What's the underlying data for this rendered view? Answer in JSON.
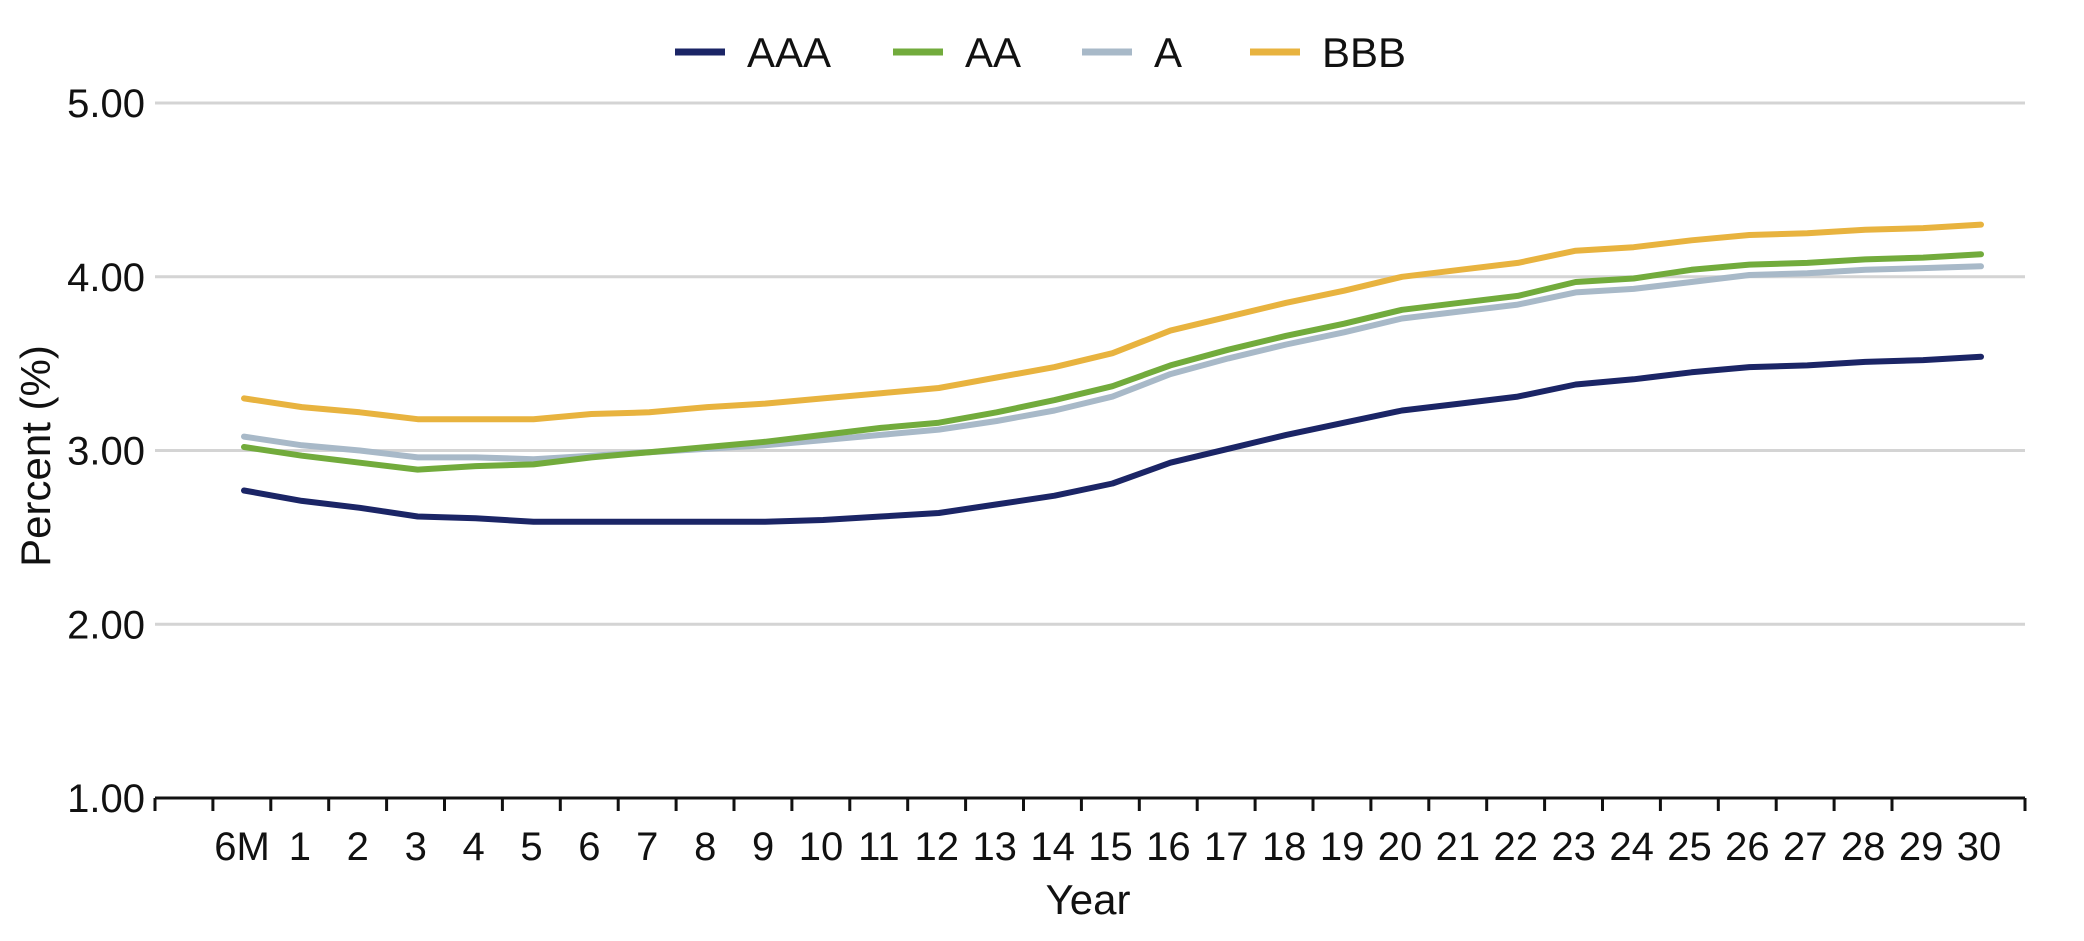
{
  "chart_data": {
    "type": "line",
    "title": "",
    "xlabel": "Year",
    "ylabel": "Percent (%)",
    "ylim": [
      1.0,
      5.0
    ],
    "yticks": [
      "1.00",
      "2.00",
      "3.00",
      "4.00",
      "5.00"
    ],
    "grid": true,
    "legend_position": "top-center",
    "categories": [
      "6M",
      "1",
      "2",
      "3",
      "4",
      "5",
      "6",
      "7",
      "8",
      "9",
      "10",
      "11",
      "12",
      "13",
      "14",
      "15",
      "16",
      "17",
      "18",
      "19",
      "20",
      "21",
      "22",
      "23",
      "24",
      "25",
      "26",
      "27",
      "28",
      "29",
      "30"
    ],
    "series": [
      {
        "name": "AAA",
        "color": "#1b2566",
        "values": [
          2.77,
          2.71,
          2.67,
          2.62,
          2.61,
          2.59,
          2.59,
          2.59,
          2.59,
          2.59,
          2.6,
          2.62,
          2.64,
          2.69,
          2.74,
          2.81,
          2.93,
          3.01,
          3.09,
          3.16,
          3.23,
          3.27,
          3.31,
          3.38,
          3.41,
          3.45,
          3.48,
          3.49,
          3.51,
          3.52,
          3.54
        ]
      },
      {
        "name": "AA",
        "color": "#72ab3c",
        "values": [
          3.02,
          2.97,
          2.93,
          2.89,
          2.91,
          2.92,
          2.96,
          2.99,
          3.02,
          3.05,
          3.09,
          3.13,
          3.16,
          3.22,
          3.29,
          3.37,
          3.49,
          3.58,
          3.66,
          3.73,
          3.81,
          3.85,
          3.89,
          3.97,
          3.99,
          4.04,
          4.07,
          4.08,
          4.1,
          4.11,
          4.13
        ]
      },
      {
        "name": "A",
        "color": "#a8b9c8",
        "values": [
          3.08,
          3.03,
          3.0,
          2.96,
          2.96,
          2.95,
          2.97,
          2.99,
          3.01,
          3.03,
          3.06,
          3.09,
          3.12,
          3.17,
          3.23,
          3.31,
          3.44,
          3.53,
          3.61,
          3.68,
          3.76,
          3.8,
          3.84,
          3.91,
          3.93,
          3.97,
          4.01,
          4.02,
          4.04,
          4.05,
          4.06
        ]
      },
      {
        "name": "BBB",
        "color": "#e8b33f",
        "values": [
          3.3,
          3.25,
          3.22,
          3.18,
          3.18,
          3.18,
          3.21,
          3.22,
          3.25,
          3.27,
          3.3,
          3.33,
          3.36,
          3.42,
          3.48,
          3.56,
          3.69,
          3.77,
          3.85,
          3.92,
          4.0,
          4.04,
          4.08,
          4.15,
          4.17,
          4.21,
          4.24,
          4.25,
          4.27,
          4.28,
          4.3
        ]
      }
    ]
  }
}
